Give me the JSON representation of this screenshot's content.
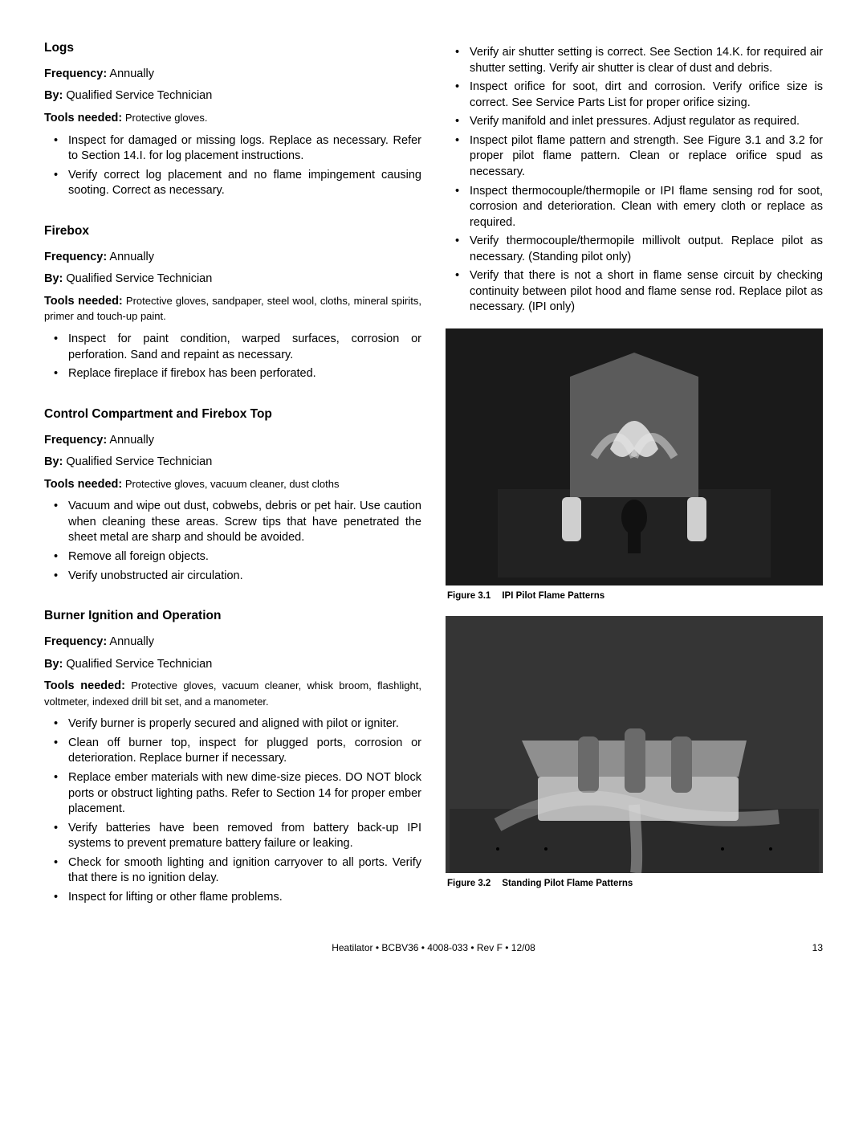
{
  "left": {
    "sections": [
      {
        "heading": "Logs",
        "frequency_label": "Frequency:",
        "frequency_value": " Annually",
        "by_label": "By:",
        "by_value": "  Qualified Service Technician",
        "tools_label": "Tools needed:",
        "tools_value": " Protective gloves.",
        "bullets": [
          "Inspect for damaged or missing logs.  Replace as necessary.  Refer to Section 14.I. for log placement instructions.",
          "Verify correct log placement and no flame impingement causing sooting.  Correct as necessary."
        ]
      },
      {
        "heading": "Firebox",
        "frequency_label": "Frequency:",
        "frequency_value": " Annually",
        "by_label": "By:",
        "by_value": "  Qualified Service Technician",
        "tools_label": "Tools needed:",
        "tools_value": " Protective gloves, sandpaper, steel wool, cloths, mineral spirits, primer and touch-up paint.",
        "tools_justify": true,
        "bullets": [
          "Inspect for paint condition, warped surfaces, corrosion or perforation.  Sand and repaint as necessary.",
          "Replace fireplace if firebox has been perforated."
        ]
      },
      {
        "heading": "Control Compartment and Firebox Top",
        "frequency_label": "Frequency:",
        "frequency_value": " Annually",
        "by_label": "By:",
        "by_value": "  Qualified Service Technician",
        "tools_label": "Tools needed:",
        "tools_value": " Protective gloves, vacuum cleaner, dust cloths",
        "bullets": [
          "Vacuum and wipe out dust, cobwebs, debris or pet hair. Use caution when cleaning these areas.  Screw tips that have penetrated the sheet metal are sharp and should be avoided.",
          "Remove all foreign objects.",
          "Verify unobstructed air circulation."
        ]
      },
      {
        "heading": "Burner Ignition and Operation",
        "frequency_label": "Frequency:",
        "frequency_value": " Annually",
        "by_label": "By:",
        "by_value": "  Qualified Service Technician",
        "tools_label": "Tools needed:",
        "tools_value": " Protective gloves, vacuum cleaner, whisk broom, flashlight, voltmeter, indexed drill bit set, and a manometer.",
        "tools_justify": true,
        "bullets": [
          "Verify burner is properly secured and aligned with pilot or igniter.",
          "Clean off burner top, inspect for plugged ports, corrosion or deterioration.  Replace burner if necessary.",
          "Replace ember materials with new dime-size pieces. DO NOT block ports or obstruct lighting paths. Refer to Section 14 for proper ember placement.",
          "Verify batteries have been removed from battery back-up IPI systems to prevent premature battery failure or leaking.",
          "Check for smooth lighting and ignition carryover to all ports. Verify that there is no ignition delay.",
          "Inspect for lifting or other flame problems."
        ],
        "last": true
      }
    ]
  },
  "right": {
    "bullets": [
      "Verify air shutter setting is correct.  See Section 14.K. for required air shutter setting.  Verify air shutter is clear of dust and debris.",
      "Inspect orifice for soot, dirt and corrosion. Verify orifice size is correct.  See Service Parts List  for proper orifice sizing.",
      "Verify manifold and inlet pressures. Adjust regulator as required.",
      "Inspect pilot flame pattern and strength. See Figure 3.1 and 3.2 for proper pilot flame pattern. Clean or replace orifice spud as necessary.",
      "Inspect thermocouple/thermopile or IPI flame sensing rod for soot, corrosion and deterioration. Clean with emery cloth or replace as required.",
      "Verify thermocouple/thermopile millivolt output. Replace pilot as necessary. (Standing pilot only)",
      "Verify that there is not a short in flame sense circuit by checking continuity between pilot hood and flame sense rod. Replace pilot as necessary. (IPI only)"
    ],
    "figure1": {
      "label": "Figure 3.1",
      "title": "IPI Pilot Flame Patterns",
      "colors": {
        "bg": "#1a1a1a",
        "metal": "#5b5b5b",
        "dark": "#222",
        "light": "#cfcfcf",
        "flame": "#e8e8e8"
      }
    },
    "figure2": {
      "label": "Figure 3.2",
      "title": "Standing Pilot Flame Patterns",
      "colors": {
        "bg": "#353535",
        "plate": "#b8b8b8",
        "dark": "#2a2a2a",
        "peg": "#6a6a6a",
        "flame": "#dcdcdc"
      }
    }
  },
  "footer": {
    "text": "Heatilator  •  BCBV36  •  4008-033 • Rev F  •  12/08",
    "page": "13"
  }
}
